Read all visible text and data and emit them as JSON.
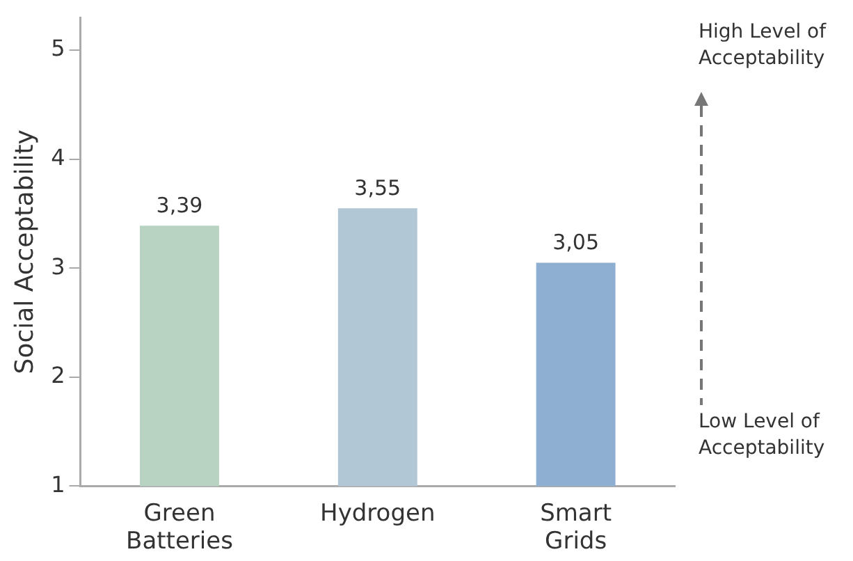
{
  "chart_data": {
    "type": "bar",
    "ylabel": "Social Acceptability",
    "categories": [
      "Green Batteries",
      "Hydrogen",
      "Smart Grids"
    ],
    "values": [
      3.39,
      3.55,
      3.05
    ],
    "value_labels": [
      "3,39",
      "3,55",
      "3,05"
    ],
    "colors": [
      "#b8d3c2",
      "#b2c7d6",
      "#8eafd2"
    ],
    "ylim": [
      1,
      5.3
    ],
    "yticks": [
      1,
      2,
      3,
      4,
      5
    ],
    "grid": false,
    "legend": false,
    "annotations": [
      "High Level of Acceptability",
      "Low Level of Acceptability"
    ]
  }
}
